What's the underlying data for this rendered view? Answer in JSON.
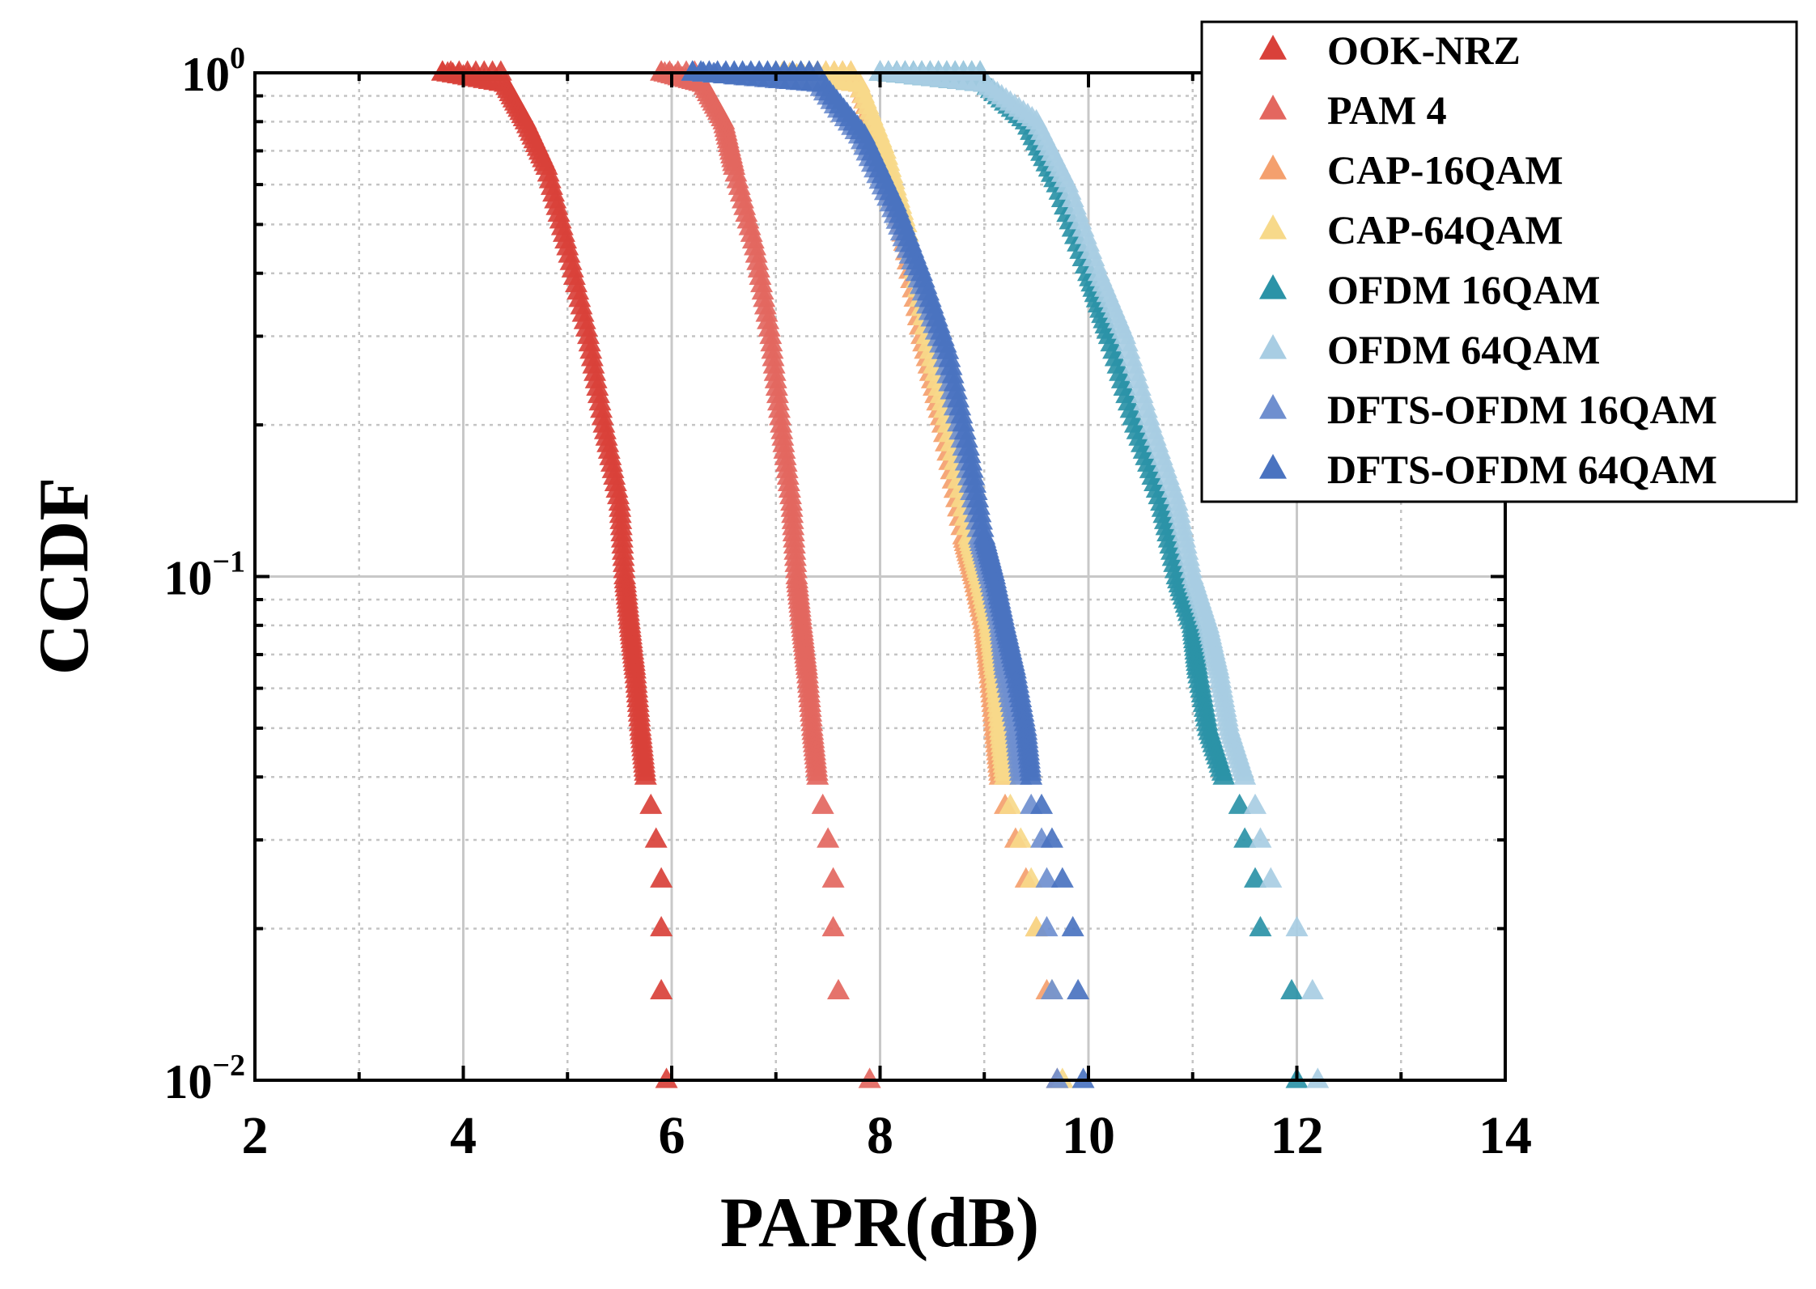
{
  "chart_data": {
    "type": "scatter",
    "xlabel": "PAPR(dB)",
    "ylabel": "CCDF",
    "xlim": [
      2,
      14
    ],
    "ylim": [
      0.01,
      1
    ],
    "yscale": "log",
    "grid": true,
    "legend_position": "top-right",
    "marker": "triangle",
    "x_ticks": [
      {
        "value": 2,
        "label": "2"
      },
      {
        "value": 4,
        "label": "4"
      },
      {
        "value": 6,
        "label": "6"
      },
      {
        "value": 8,
        "label": "8"
      },
      {
        "value": 10,
        "label": "10"
      },
      {
        "value": 12,
        "label": "12"
      },
      {
        "value": 14,
        "label": "14"
      }
    ],
    "y_ticks": [
      {
        "value": 1,
        "base": "10",
        "exp": "0"
      },
      {
        "value": 0.1,
        "base": "10",
        "exp": "−1"
      },
      {
        "value": 0.01,
        "base": "10",
        "exp": "−2"
      }
    ],
    "series": [
      {
        "name": "OOK-NRZ",
        "color": "#d9413a",
        "points": [
          [
            3.8,
            1.0
          ],
          [
            4.4,
            0.95
          ],
          [
            4.6,
            0.8
          ],
          [
            4.8,
            0.65
          ],
          [
            5.0,
            0.45
          ],
          [
            5.2,
            0.3
          ],
          [
            5.35,
            0.2
          ],
          [
            5.5,
            0.14
          ],
          [
            5.55,
            0.1
          ],
          [
            5.6,
            0.08
          ],
          [
            5.65,
            0.065
          ],
          [
            5.7,
            0.05
          ],
          [
            5.75,
            0.04
          ],
          [
            5.8,
            0.035
          ],
          [
            5.85,
            0.03
          ],
          [
            5.9,
            0.025
          ],
          [
            5.9,
            0.02
          ],
          [
            5.9,
            0.015
          ],
          [
            5.95,
            0.01
          ]
        ]
      },
      {
        "name": "PAM 4",
        "color": "#e3675f",
        "points": [
          [
            5.9,
            1.0
          ],
          [
            6.3,
            0.95
          ],
          [
            6.5,
            0.8
          ],
          [
            6.6,
            0.65
          ],
          [
            6.8,
            0.45
          ],
          [
            6.95,
            0.3
          ],
          [
            7.05,
            0.2
          ],
          [
            7.15,
            0.14
          ],
          [
            7.2,
            0.1
          ],
          [
            7.25,
            0.08
          ],
          [
            7.3,
            0.065
          ],
          [
            7.35,
            0.05
          ],
          [
            7.4,
            0.04
          ],
          [
            7.45,
            0.035
          ],
          [
            7.5,
            0.03
          ],
          [
            7.55,
            0.025
          ],
          [
            7.55,
            0.02
          ],
          [
            7.6,
            0.015
          ],
          [
            7.9,
            0.01
          ]
        ]
      },
      {
        "name": "CAP-16QAM",
        "color": "#f4a06e",
        "points": [
          [
            7.0,
            1.0
          ],
          [
            7.8,
            0.95
          ],
          [
            8.0,
            0.7
          ],
          [
            8.2,
            0.5
          ],
          [
            8.4,
            0.3
          ],
          [
            8.6,
            0.2
          ],
          [
            8.8,
            0.12
          ],
          [
            8.9,
            0.1
          ],
          [
            9.0,
            0.08
          ],
          [
            9.05,
            0.065
          ],
          [
            9.1,
            0.05
          ],
          [
            9.15,
            0.04
          ],
          [
            9.2,
            0.035
          ],
          [
            9.3,
            0.03
          ],
          [
            9.4,
            0.025
          ],
          [
            9.5,
            0.02
          ],
          [
            9.6,
            0.015
          ],
          [
            9.7,
            0.01
          ]
        ]
      },
      {
        "name": "CAP-64QAM",
        "color": "#f7d98a",
        "points": [
          [
            7.0,
            1.0
          ],
          [
            7.8,
            0.95
          ],
          [
            8.05,
            0.7
          ],
          [
            8.25,
            0.5
          ],
          [
            8.45,
            0.3
          ],
          [
            8.65,
            0.2
          ],
          [
            8.85,
            0.12
          ],
          [
            8.95,
            0.1
          ],
          [
            9.05,
            0.08
          ],
          [
            9.1,
            0.065
          ],
          [
            9.15,
            0.05
          ],
          [
            9.2,
            0.04
          ],
          [
            9.25,
            0.035
          ],
          [
            9.35,
            0.03
          ],
          [
            9.45,
            0.025
          ],
          [
            9.5,
            0.02
          ],
          [
            9.65,
            0.015
          ],
          [
            9.75,
            0.01
          ]
        ]
      },
      {
        "name": "OFDM 16QAM",
        "color": "#2b93a7",
        "points": [
          [
            8.0,
            1.0
          ],
          [
            9.0,
            0.95
          ],
          [
            9.4,
            0.8
          ],
          [
            9.7,
            0.6
          ],
          [
            10.0,
            0.4
          ],
          [
            10.2,
            0.3
          ],
          [
            10.45,
            0.2
          ],
          [
            10.7,
            0.14
          ],
          [
            10.85,
            0.1
          ],
          [
            11.0,
            0.08
          ],
          [
            11.05,
            0.065
          ],
          [
            11.15,
            0.05
          ],
          [
            11.3,
            0.04
          ],
          [
            11.45,
            0.035
          ],
          [
            11.5,
            0.03
          ],
          [
            11.6,
            0.025
          ],
          [
            11.65,
            0.02
          ],
          [
            11.95,
            0.015
          ],
          [
            12.0,
            0.01
          ]
        ]
      },
      {
        "name": "OFDM 64QAM",
        "color": "#a8cde3",
        "points": [
          [
            8.0,
            1.0
          ],
          [
            9.0,
            0.95
          ],
          [
            9.5,
            0.8
          ],
          [
            9.8,
            0.6
          ],
          [
            10.1,
            0.4
          ],
          [
            10.35,
            0.3
          ],
          [
            10.6,
            0.2
          ],
          [
            10.85,
            0.14
          ],
          [
            11.0,
            0.1
          ],
          [
            11.15,
            0.08
          ],
          [
            11.25,
            0.065
          ],
          [
            11.35,
            0.05
          ],
          [
            11.5,
            0.04
          ],
          [
            11.6,
            0.035
          ],
          [
            11.65,
            0.03
          ],
          [
            11.75,
            0.025
          ],
          [
            12.0,
            0.02
          ],
          [
            12.15,
            0.015
          ],
          [
            12.2,
            0.01
          ]
        ]
      },
      {
        "name": "DFTS-OFDM 16QAM",
        "color": "#6f8fcf",
        "points": [
          [
            6.2,
            1.0
          ],
          [
            7.4,
            0.95
          ],
          [
            7.8,
            0.75
          ],
          [
            8.1,
            0.55
          ],
          [
            8.35,
            0.4
          ],
          [
            8.6,
            0.28
          ],
          [
            8.8,
            0.18
          ],
          [
            8.95,
            0.12
          ],
          [
            9.05,
            0.1
          ],
          [
            9.15,
            0.08
          ],
          [
            9.2,
            0.065
          ],
          [
            9.3,
            0.05
          ],
          [
            9.35,
            0.04
          ],
          [
            9.45,
            0.035
          ],
          [
            9.55,
            0.03
          ],
          [
            9.6,
            0.025
          ],
          [
            9.6,
            0.02
          ],
          [
            9.65,
            0.015
          ],
          [
            9.7,
            0.01
          ]
        ]
      },
      {
        "name": "DFTS-OFDM 64QAM",
        "color": "#4a73c0",
        "points": [
          [
            6.2,
            1.0
          ],
          [
            7.45,
            0.95
          ],
          [
            7.85,
            0.75
          ],
          [
            8.15,
            0.55
          ],
          [
            8.4,
            0.4
          ],
          [
            8.65,
            0.28
          ],
          [
            8.85,
            0.18
          ],
          [
            9.0,
            0.12
          ],
          [
            9.1,
            0.1
          ],
          [
            9.2,
            0.08
          ],
          [
            9.3,
            0.065
          ],
          [
            9.4,
            0.05
          ],
          [
            9.45,
            0.04
          ],
          [
            9.55,
            0.035
          ],
          [
            9.65,
            0.03
          ],
          [
            9.75,
            0.025
          ],
          [
            9.85,
            0.02
          ],
          [
            9.9,
            0.015
          ],
          [
            9.95,
            0.01
          ]
        ]
      }
    ]
  }
}
